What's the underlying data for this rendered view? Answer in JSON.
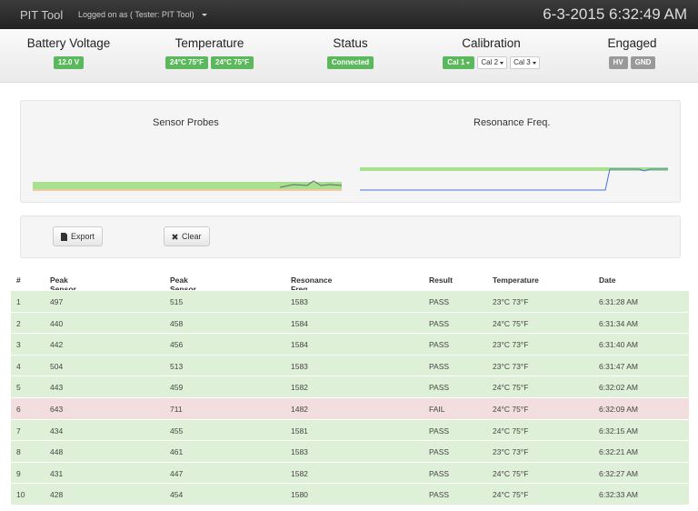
{
  "navbar": {
    "brand": "PIT Tool",
    "user": "Logged on as ( Tester: PIT Tool)",
    "datetime": "6-3-2015 6:32:49 AM"
  },
  "status": [
    {
      "label": "Battery Voltage",
      "badges": [
        {
          "text": "12.0 V",
          "color": "#5cb85c"
        }
      ]
    },
    {
      "label": "Temperature",
      "badges": [
        {
          "text": "24°C 75°F",
          "color": "#5cb85c"
        },
        {
          "text": "24°C 75°F",
          "color": "#5cb85c"
        }
      ]
    },
    {
      "label": "Status",
      "badges": [
        {
          "text": "Connected",
          "color": "#5cb85c"
        }
      ]
    },
    {
      "label": "Calibration",
      "badges": [
        {
          "text": "Cal 1",
          "color": "#5cb85c"
        },
        {
          "text": "Cal 2",
          "color": "#ffffff"
        },
        {
          "text": "Cal 3",
          "color": "#ffffff"
        }
      ]
    },
    {
      "label": "Engaged",
      "badges": [
        {
          "text": "HV",
          "color": "#999999"
        },
        {
          "text": "GND",
          "color": "#999999"
        }
      ]
    }
  ],
  "charts": [
    "Sensor Probes",
    "Resonance Freq."
  ],
  "buttons": [
    "Export",
    "Clear"
  ],
  "table": {
    "headers": [
      "#",
      "Peak Sensor A",
      "Peak Sensor B",
      "Resonance Freq.",
      "Result",
      "Temperature",
      "Date"
    ],
    "rows": [
      {
        "color": "#dff0d8",
        "cells": [
          1,
          497,
          515,
          1583,
          "PASS",
          "23°C 73°F",
          "6:31:28 AM"
        ]
      },
      {
        "color": "#dff0d8",
        "cells": [
          2,
          440,
          458,
          1584,
          "PASS",
          "24°C 75°F",
          "6:31:34 AM"
        ]
      },
      {
        "color": "#dff0d8",
        "cells": [
          3,
          442,
          456,
          1584,
          "PASS",
          "23°C 73°F",
          "6:31:40 AM"
        ]
      },
      {
        "color": "#dff0d8",
        "cells": [
          4,
          504,
          513,
          1583,
          "PASS",
          "23°C 73°F",
          "6:31:47 AM"
        ]
      },
      {
        "color": "#dff0d8",
        "cells": [
          5,
          443,
          459,
          1582,
          "PASS",
          "24°C 75°F",
          "6:32:02 AM"
        ]
      },
      {
        "color": "#f2dede",
        "cells": [
          6,
          643,
          711,
          1482,
          "FAIL",
          "24°C 75°F",
          "6:32:09 AM"
        ]
      },
      {
        "color": "#dff0d8",
        "cells": [
          7,
          434,
          455,
          1581,
          "PASS",
          "24°C 75°F",
          "6:32:15 AM"
        ]
      },
      {
        "color": "#dff0d8",
        "cells": [
          8,
          448,
          461,
          1583,
          "PASS",
          "23°C 73°F",
          "6:32:21 AM"
        ]
      },
      {
        "color": "#dff0d8",
        "cells": [
          9,
          431,
          447,
          1582,
          "PASS",
          "24°C 75°F",
          "6:32:27 AM"
        ]
      },
      {
        "color": "#dff0d8",
        "cells": [
          10,
          428,
          454,
          1580,
          "PASS",
          "24°C 75°F",
          "6:32:33 AM"
        ]
      }
    ]
  }
}
